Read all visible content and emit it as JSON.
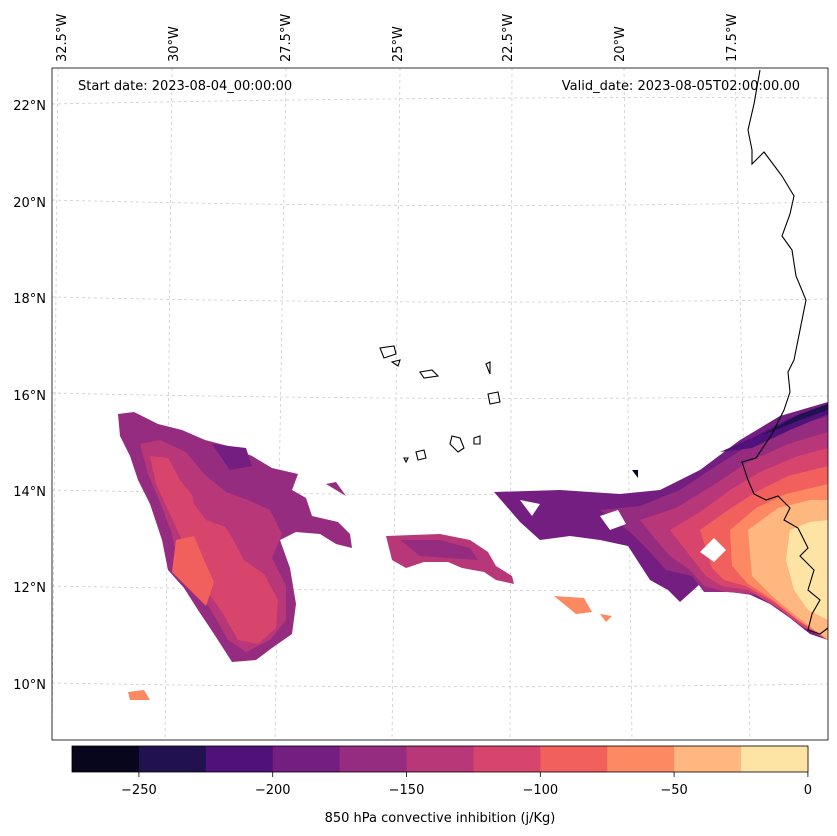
{
  "header": {
    "start_date": "Start date: 2023-08-04_00:00:00",
    "valid_date": "Valid_date: 2023-08-05T02:00:00.00"
  },
  "map": {
    "lon_labels": [
      "32.5°W",
      "30°W",
      "27.5°W",
      "25°W",
      "22.5°W",
      "20°W",
      "17.5°W"
    ],
    "lat_labels": [
      "22°N",
      "20°N",
      "18°N",
      "16°N",
      "14°N",
      "12°N",
      "10°N"
    ]
  },
  "colorbar": {
    "label": "850 hPa convective inhibition (j/Kg)",
    "tick_labels": [
      "−250",
      "−200",
      "−150",
      "−100",
      "−50",
      "0"
    ],
    "colors": [
      "#07061c",
      "#221150",
      "#4f127b",
      "#741e81",
      "#952c80",
      "#b73779",
      "#d8456c",
      "#f1605d",
      "#fc8961",
      "#feb77e",
      "#fde4a5"
    ]
  }
}
